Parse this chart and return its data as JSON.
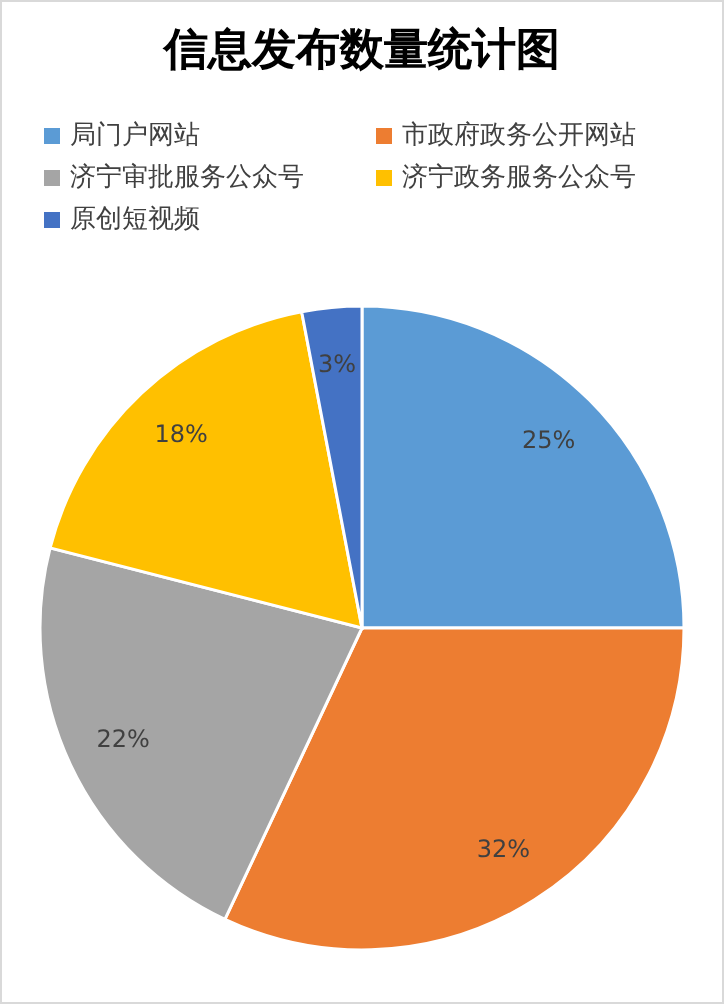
{
  "chart_data": {
    "type": "pie",
    "title": "信息发布数量统计图",
    "categories": [
      "局门户网站",
      "市政府政务公开网站",
      "济宁审批服务公众号",
      "济宁政务服务公众号",
      "原创短视频"
    ],
    "values": [
      25,
      32,
      22,
      18,
      3
    ],
    "colors": [
      "#5b9bd5",
      "#ed7d31",
      "#a5a5a5",
      "#ffc000",
      "#4472c4"
    ],
    "value_labels": [
      "25%",
      "32%",
      "22%",
      "18%",
      "3%"
    ],
    "legend": "top"
  }
}
